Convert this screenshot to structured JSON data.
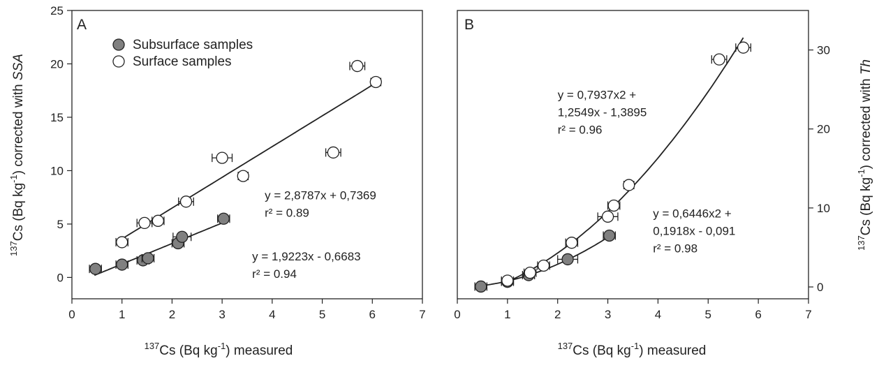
{
  "chart_data": [
    {
      "type": "scatter",
      "panel_label": "A",
      "xlabel": {
        "prefix": "137",
        "main": "Cs (Bq kg",
        "unit_sup": "-1",
        "suffix": ")  measured"
      },
      "ylabel": {
        "prefix": "137",
        "main": "Cs (Bq kg",
        "unit_sup": "-1",
        "suffix": ") corrected with ",
        "italic": "SSA"
      },
      "xlim": [
        0,
        7
      ],
      "ylim": [
        -2,
        25
      ],
      "xticks": [
        0,
        1,
        2,
        3,
        4,
        5,
        6,
        7
      ],
      "yticks": [
        0,
        5,
        10,
        15,
        20,
        25
      ],
      "grid": false,
      "legend_position": "top-left",
      "legend": [
        "Subsurface samples",
        "Surface samples"
      ],
      "series": [
        {
          "name": "Subsurface samples",
          "marker": "filled-circle",
          "color": "#808080",
          "x": [
            0.47,
            1.0,
            1.42,
            1.52,
            2.12,
            2.2,
            3.03
          ],
          "y": [
            0.8,
            1.2,
            1.6,
            1.8,
            3.2,
            3.8,
            5.5
          ],
          "x_err": [
            0.12,
            0.12,
            0.12,
            0.12,
            0.12,
            0.18,
            0.12
          ],
          "fit": {
            "kind": "linear",
            "slope": 1.9223,
            "intercept": -0.6683,
            "x_range": [
              0.45,
              3.05
            ]
          },
          "annotation": {
            "eq": "y = 1,9223x - 0,6683",
            "r2": "r² = 0.94",
            "x": 3.6,
            "y": 1.6
          }
        },
        {
          "name": "Surface samples",
          "marker": "open-circle",
          "color": "#ffffff",
          "x": [
            1.0,
            1.45,
            1.72,
            2.28,
            3.0,
            3.42,
            5.22,
            5.7,
            6.07
          ],
          "y": [
            3.3,
            5.1,
            5.3,
            7.1,
            11.2,
            9.5,
            11.7,
            19.8,
            18.3
          ],
          "x_err": [
            0.12,
            0.15,
            0.12,
            0.15,
            0.2,
            0.1,
            0.15,
            0.15,
            0.1
          ],
          "fit": {
            "kind": "linear",
            "slope": 2.8787,
            "intercept": 0.7369,
            "x_range": [
              1.0,
              6.05
            ]
          },
          "annotation": {
            "eq": "y = 2,8787x + 0,7369",
            "r2": "r² = 0.89",
            "x": 3.85,
            "y": 7.3
          }
        }
      ]
    },
    {
      "type": "scatter",
      "panel_label": "B",
      "xlabel": {
        "prefix": "137",
        "main": "Cs (Bq kg",
        "unit_sup": "-1",
        "suffix": ") measured"
      },
      "ylabel": {
        "prefix": "137",
        "main": "Cs (Bq kg",
        "unit_sup": "-1",
        "suffix": ") corrected with ",
        "italic": "Th"
      },
      "y_axis_side": "right",
      "xlim": [
        0,
        7
      ],
      "ylim": [
        -1.5,
        35
      ],
      "xticks": [
        0,
        1,
        2,
        3,
        4,
        5,
        6,
        7
      ],
      "yticks": [
        0,
        10,
        20,
        30
      ],
      "grid": false,
      "series": [
        {
          "name": "",
          "marker": "filled-circle",
          "color": "#808080",
          "x": [
            0.47,
            1.0,
            1.42,
            2.2,
            3.03
          ],
          "y": [
            0.05,
            0.65,
            1.5,
            3.5,
            6.5
          ],
          "x_err": [
            0.12,
            0.12,
            0.12,
            0.2,
            0.12
          ],
          "fit": {
            "kind": "quadratic",
            "a": 0.6446,
            "b": 0.1918,
            "c": -0.091,
            "x_range": [
              0.45,
              3.05
            ]
          },
          "annotation": {
            "eq_line1": "y = 0,6446x2 +",
            "eq_line2": "0,1918x - 0,091",
            "r2": "r² = 0.98",
            "x": 3.9,
            "y": 8.8
          }
        },
        {
          "name": "",
          "marker": "open-circle",
          "color": "#ffffff",
          "x": [
            1.0,
            1.45,
            1.72,
            2.28,
            3.0,
            3.12,
            3.42,
            5.22,
            5.7
          ],
          "y": [
            0.8,
            1.8,
            2.7,
            5.6,
            8.9,
            10.3,
            12.9,
            28.8,
            30.3
          ],
          "x_err": [
            0.12,
            0.12,
            0.12,
            0.12,
            0.2,
            0.12,
            0.1,
            0.15,
            0.15
          ],
          "fit": {
            "kind": "quadratic",
            "a": 0.7937,
            "b": 1.2549,
            "c": -1.3895,
            "x_range": [
              1.0,
              5.7
            ]
          },
          "annotation": {
            "eq_line1": "y = 0,7937x2 +",
            "eq_line2": "1,2549x - 1,3895",
            "r2": "r² = 0.96",
            "x": 2.0,
            "y": 23.8
          }
        }
      ]
    }
  ]
}
